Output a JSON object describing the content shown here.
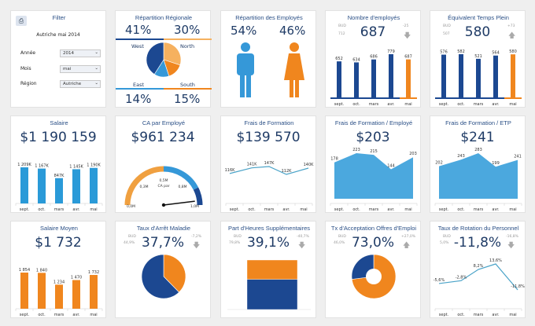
{
  "colors": {
    "dark_blue": "#1c4891",
    "light_blue": "#3598d8",
    "orange": "#f0861e",
    "light_orange": "#f6b15f",
    "background": "#efefef"
  },
  "filter": {
    "icon": "print-icon",
    "title": "Filter",
    "subtitle": "Autriche mai 2014",
    "fields": [
      {
        "label": "Année",
        "value": "2014"
      },
      {
        "label": "Mois",
        "value": "mai"
      },
      {
        "label": "Région",
        "value": "Autriche"
      }
    ]
  },
  "regional": {
    "title": "Répartition Régionale",
    "west_pct": "41%",
    "north_pct": "30%",
    "east_pct": "14%",
    "south_pct": "15%",
    "west": "West",
    "north": "North",
    "east": "East",
    "south": "South"
  },
  "employees_split": {
    "title": "Répartition des Employés",
    "male_pct": "54%",
    "female_pct": "46%",
    "male_icon": "man-icon",
    "female_icon": "woman-icon"
  },
  "headcount": {
    "title": "Nombre d'employés",
    "value": "687",
    "bud_label": "BUD",
    "bud": "712",
    "delta": "-25",
    "trend": "down"
  },
  "fte": {
    "title": "Équivalent Temps Plein",
    "value": "580",
    "bud_label": "BUD",
    "bud": "507",
    "delta": "+73",
    "trend": "up"
  },
  "salary": {
    "title": "Salaire",
    "value": "$1 190 159"
  },
  "revenue_per_emp": {
    "title": "CA par Employé",
    "value": "$961 234"
  },
  "training": {
    "title": "Frais de Formation",
    "value": "$139 570"
  },
  "training_per_emp": {
    "title": "Frais de Formation / Employé",
    "value": "$203"
  },
  "training_per_fte": {
    "title": "Frais de Formation / ETP",
    "value": "$241"
  },
  "avg_salary": {
    "title": "Salaire Moyen",
    "value": "$1 732"
  },
  "sick_rate": {
    "title": "Taux d'Arrêt Maladie",
    "value": "37,7%",
    "bud_label": "BUD",
    "bud": "44,9%",
    "delta": "-7,2%",
    "trend": "down"
  },
  "overtime": {
    "title": "Part d'Heures Supplémentaires",
    "value": "39,1%",
    "bud_label": "BUD",
    "bud": "79,8%",
    "delta": "-40,7%",
    "trend": "down"
  },
  "offer_accept": {
    "title": "Tx d'Acceptation Offres d'Emploi",
    "value": "73,0%",
    "bud_label": "BUD",
    "bud": "46,0%",
    "delta": "+27,0%",
    "trend": "up"
  },
  "turnover": {
    "title": "Taux de Rotation du Personnel",
    "value": "-11,8%",
    "bud_label": "BUD",
    "bud": "5,0%",
    "delta": "-16,8%",
    "trend": "down"
  },
  "chart_data": [
    {
      "id": "regional",
      "type": "pie",
      "slices": [
        {
          "name": "North",
          "value": 30,
          "color": "#f6b15f"
        },
        {
          "name": "South",
          "value": 15,
          "color": "#f0861e"
        },
        {
          "name": "East",
          "value": 14,
          "color": "#3598d8"
        },
        {
          "name": "West",
          "value": 41,
          "color": "#1c4891"
        }
      ]
    },
    {
      "id": "headcount",
      "type": "bar",
      "categories": [
        "sept.",
        "oct.",
        "mars",
        "avr.",
        "mai"
      ],
      "values": [
        652,
        634,
        686,
        779,
        687
      ],
      "labels": [
        "652",
        "634",
        "686",
        "779",
        "687"
      ],
      "color": "#1c4891",
      "highlight_last": "#f0861e"
    },
    {
      "id": "fte",
      "type": "bar",
      "categories": [
        "sept.",
        "oct.",
        "mars",
        "avr.",
        "mai"
      ],
      "values": [
        576,
        582,
        521,
        564,
        580
      ],
      "labels": [
        "576",
        "582",
        "521",
        "564",
        "580"
      ],
      "color": "#1c4891",
      "highlight_last": "#f0861e"
    },
    {
      "id": "salary",
      "type": "bar",
      "categories": [
        "sept.",
        "oct.",
        "mars",
        "avr.",
        "mai"
      ],
      "values": [
        1209,
        1167,
        847,
        1145,
        1190
      ],
      "labels": [
        "1 209K",
        "1 167K",
        "847K",
        "1 145K",
        "1 190K"
      ],
      "color": "#2a9ad8"
    },
    {
      "id": "revenue_per_emp",
      "type": "gauge",
      "value": 0.961,
      "range": [
        0,
        1.0
      ],
      "ticks": [
        "0,0M",
        "0,3M",
        "0,5M",
        "0,8M",
        "1,0M"
      ],
      "center_label": "CA par"
    },
    {
      "id": "training",
      "type": "line",
      "categories": [
        "sept.",
        "oct.",
        "mars",
        "avr.",
        "mai"
      ],
      "values": [
        116,
        141,
        147,
        112,
        140
      ],
      "labels": [
        "116K",
        "141K",
        "147K",
        "112K",
        "140K"
      ],
      "color": "#4aa3c8"
    },
    {
      "id": "training_per_emp",
      "type": "area",
      "categories": [
        "sept.",
        "oct.",
        "mars",
        "avr.",
        "mai"
      ],
      "values": [
        178,
        223,
        215,
        144,
        203
      ],
      "labels": [
        "178",
        "223",
        "215",
        "144",
        "203"
      ],
      "color": "#4ba8de"
    },
    {
      "id": "training_per_fte",
      "type": "area",
      "categories": [
        "sept.",
        "oct.",
        "mars",
        "avr.",
        "mai"
      ],
      "values": [
        202,
        243,
        283,
        199,
        241
      ],
      "labels": [
        "202",
        "243",
        "283",
        "199",
        "241"
      ],
      "color": "#4ba8de"
    },
    {
      "id": "avg_salary",
      "type": "bar",
      "categories": [
        "sept.",
        "oct.",
        "mars",
        "avr.",
        "mai"
      ],
      "values": [
        1854,
        1840,
        1234,
        1470,
        1732
      ],
      "labels": [
        "1 854",
        "1 840",
        "1 234",
        "1 470",
        "1 732"
      ],
      "color": "#f0861e"
    },
    {
      "id": "sick_rate",
      "type": "pie",
      "slices": [
        {
          "value": 37.7,
          "color": "#f0861e"
        },
        {
          "value": 62.3,
          "color": "#1c4891"
        }
      ]
    },
    {
      "id": "overtime",
      "type": "stacked",
      "segments": [
        {
          "value": 39.1,
          "color": "#f0861e"
        },
        {
          "value": 60.9,
          "color": "#1c4891"
        }
      ]
    },
    {
      "id": "offer_accept",
      "type": "donut",
      "slices": [
        {
          "value": 73.0,
          "color": "#f0861e"
        },
        {
          "value": 27.0,
          "color": "#1c4891"
        }
      ]
    },
    {
      "id": "turnover",
      "type": "line",
      "categories": [
        "sept.",
        "oct.",
        "mars",
        "avr.",
        "mai"
      ],
      "values": [
        -5.6,
        -2.8,
        8.2,
        13.6,
        -11.8
      ],
      "labels": [
        "-5,6%",
        "-2,8%",
        "8,2%",
        "13,6%",
        "-11,8%"
      ],
      "color": "#4aa3c8"
    }
  ]
}
